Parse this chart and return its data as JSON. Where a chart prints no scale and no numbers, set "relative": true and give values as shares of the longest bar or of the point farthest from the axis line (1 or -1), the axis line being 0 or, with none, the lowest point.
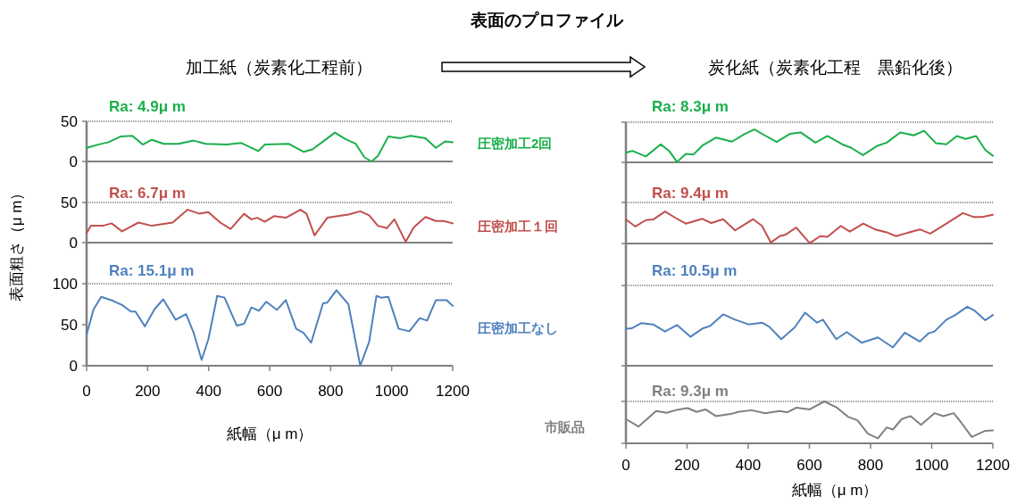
{
  "chart_data": [
    {
      "type": "other",
      "title": "表面のプロファイル",
      "annotations": [
        "加工紙（炭素化工程前）",
        "炭化紙（炭素化工程　黒鉛化後）"
      ]
    },
    {
      "type": "line",
      "title": "Ra: 4.9μ m",
      "xlim": [
        0,
        1200
      ],
      "ylim": [
        0,
        50
      ],
      "yticks": [
        0,
        50
      ],
      "tick_labels": "y",
      "series": [
        {
          "name": "圧密加工2回",
          "color": "#1aaf4b",
          "x": [
            0,
            38,
            72,
            111,
            150,
            184,
            214,
            253,
            301,
            351,
            390,
            458,
            507,
            563,
            584,
            662,
            711,
            740,
            779,
            814,
            848,
            882,
            911,
            934,
            955,
            989,
            1028,
            1062,
            1111,
            1145,
            1175,
            1200
          ],
          "values": [
            17,
            21,
            24,
            31,
            32,
            21,
            27,
            22,
            22,
            26,
            22,
            21,
            23,
            13,
            21,
            22,
            12,
            15,
            26,
            36,
            28,
            22,
            5,
            0,
            7,
            31,
            29,
            32,
            29,
            17,
            25,
            24
          ]
        }
      ]
    },
    {
      "type": "line",
      "title": "Ra: 6.7μ m",
      "ylabel": "表面粗さ（μ m）",
      "xlim": [
        0,
        1200
      ],
      "ylim": [
        0,
        50
      ],
      "yticks": [
        0,
        50
      ],
      "tick_labels": "y",
      "series": [
        {
          "name": "圧密加工１回",
          "color": "#c0504d",
          "x": [
            0,
            14,
            53,
            82,
            116,
            170,
            214,
            282,
            331,
            370,
            399,
            438,
            472,
            516,
            540,
            560,
            584,
            614,
            653,
            701,
            721,
            747,
            789,
            858,
            897,
            926,
            955,
            984,
            1009,
            1046,
            1072,
            1111,
            1145,
            1170,
            1200
          ],
          "values": [
            12,
            21,
            21,
            24,
            14,
            25,
            21,
            25,
            41,
            36,
            38,
            25,
            17,
            36,
            29,
            31,
            26,
            33,
            31,
            41,
            36,
            9,
            31,
            35,
            39,
            34,
            21,
            18,
            29,
            1,
            19,
            32,
            27,
            27,
            24
          ]
        }
      ]
    },
    {
      "type": "line",
      "title": "Ra: 15.1μ m",
      "xlabel": "紙幅（μ m）",
      "xlim": [
        0,
        1200
      ],
      "xticks": [
        0,
        200,
        400,
        600,
        800,
        1000,
        1200
      ],
      "ylim": [
        0,
        100
      ],
      "yticks": [
        0,
        50,
        100
      ],
      "series": [
        {
          "name": "圧密加工なし",
          "color": "#4f81bd",
          "x": [
            0,
            23,
            48,
            87,
            116,
            145,
            160,
            191,
            223,
            251,
            292,
            326,
            351,
            377,
            399,
            428,
            452,
            492,
            516,
            540,
            565,
            589,
            624,
            653,
            687,
            711,
            736,
            775,
            789,
            819,
            858,
            897,
            926,
            950,
            965,
            989,
            1023,
            1058,
            1092,
            1116,
            1145,
            1180,
            1200
          ],
          "values": [
            38,
            69,
            84,
            79,
            74,
            66,
            66,
            48,
            69,
            81,
            56,
            63,
            40,
            7,
            32,
            85,
            83,
            49,
            51,
            71,
            67,
            78,
            68,
            80,
            45,
            40,
            28,
            76,
            77,
            92,
            75,
            0,
            29,
            85,
            83,
            84,
            45,
            42,
            58,
            55,
            80,
            80,
            73
          ]
        }
      ]
    },
    {
      "type": "line",
      "relative": true,
      "title": "Ra: 8.3μ m",
      "xlim": [
        0,
        1200
      ],
      "tick_labels": false,
      "series": [
        {
          "color": "#1aaf4b",
          "x": [
            0,
            21,
            65,
            114,
            143,
            167,
            196,
            221,
            250,
            294,
            347,
            386,
            420,
            454,
            493,
            537,
            571,
            620,
            659,
            707,
            737,
            775,
            824,
            853,
            897,
            941,
            975,
            1014,
            1048,
            1082,
            1111,
            1145,
            1175,
            1200
          ],
          "values": [
            0.29,
            0.35,
            0.18,
            0.55,
            0.33,
            0.01,
            0.26,
            0.24,
            0.51,
            0.75,
            0.63,
            0.85,
            1.0,
            0.82,
            0.62,
            0.87,
            0.91,
            0.6,
            0.8,
            0.55,
            0.44,
            0.22,
            0.51,
            0.6,
            0.91,
            0.82,
            0.96,
            0.58,
            0.55,
            0.8,
            0.71,
            0.8,
            0.38,
            0.2
          ]
        }
      ]
    },
    {
      "type": "line",
      "relative": true,
      "title": "Ra: 9.4μ m",
      "xlim": [
        0,
        1200
      ],
      "tick_labels": false,
      "series": [
        {
          "color": "#c0504d",
          "x": [
            0,
            31,
            65,
            89,
            128,
            162,
            196,
            250,
            279,
            318,
            357,
            416,
            445,
            474,
            503,
            523,
            557,
            601,
            635,
            659,
            703,
            732,
            776,
            815,
            853,
            883,
            912,
            961,
            995,
            1048,
            1102,
            1136,
            1165,
            1200
          ],
          "values": [
            0.75,
            0.53,
            0.73,
            0.75,
            1.0,
            0.8,
            0.62,
            0.77,
            0.64,
            0.76,
            0.41,
            0.76,
            0.55,
            0.03,
            0.23,
            0.28,
            0.5,
            0.01,
            0.23,
            0.21,
            0.55,
            0.37,
            0.62,
            0.44,
            0.35,
            0.23,
            0.31,
            0.44,
            0.31,
            0.62,
            0.95,
            0.83,
            0.83,
            0.9
          ]
        }
      ]
    },
    {
      "type": "line",
      "relative": true,
      "title": "Ra: 10.5μ m",
      "xlim": [
        0,
        1200
      ],
      "tick_labels": false,
      "series": [
        {
          "color": "#4f81bd",
          "x": [
            0,
            17,
            50,
            89,
            128,
            167,
            211,
            250,
            274,
            318,
            357,
            401,
            445,
            469,
            508,
            552,
            586,
            625,
            644,
            688,
            722,
            771,
            824,
            873,
            912,
            961,
            990,
            1009,
            1048,
            1077,
            1116,
            1141,
            1175,
            1200
          ],
          "values": [
            0.63,
            0.63,
            0.72,
            0.7,
            0.58,
            0.69,
            0.49,
            0.63,
            0.67,
            0.87,
            0.78,
            0.7,
            0.73,
            0.66,
            0.45,
            0.65,
            0.9,
            0.73,
            0.78,
            0.45,
            0.57,
            0.39,
            0.48,
            0.31,
            0.56,
            0.41,
            0.55,
            0.58,
            0.78,
            0.86,
            1.0,
            0.93,
            0.77,
            0.86
          ]
        }
      ]
    },
    {
      "type": "line",
      "relative": true,
      "title": "Ra: 9.3μ m",
      "xlabel": "紙幅（μ m）",
      "xlim": [
        0,
        1200
      ],
      "xticks": [
        0,
        200,
        400,
        600,
        800,
        1000,
        1200
      ],
      "tick_labels": "x",
      "series": [
        {
          "name": "市販品",
          "color": "#808080",
          "x": [
            0,
            41,
            99,
            133,
            167,
            202,
            231,
            260,
            294,
            343,
            367,
            411,
            455,
            503,
            528,
            557,
            601,
            649,
            688,
            727,
            757,
            791,
            824,
            853,
            873,
            902,
            931,
            965,
            1009,
            1038,
            1072,
            1097,
            1131,
            1175,
            1200
          ],
          "values": [
            0.58,
            0.4,
            0.77,
            0.73,
            0.8,
            0.84,
            0.75,
            0.81,
            0.65,
            0.7,
            0.75,
            0.79,
            0.72,
            0.77,
            0.74,
            0.85,
            0.81,
            1.0,
            0.86,
            0.63,
            0.55,
            0.23,
            0.12,
            0.38,
            0.33,
            0.58,
            0.65,
            0.44,
            0.72,
            0.65,
            0.72,
            0.49,
            0.15,
            0.3,
            0.31
          ]
        }
      ]
    }
  ]
}
